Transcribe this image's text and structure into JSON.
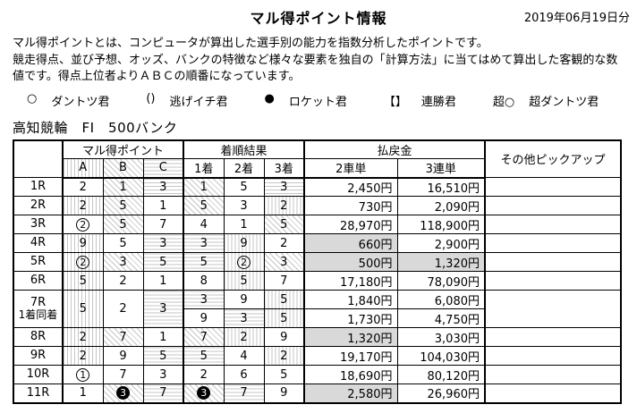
{
  "colors": {
    "hit_bg": "#d9d9d9",
    "hatch_line": "#c6c6c6",
    "border": "#000000"
  },
  "page": {
    "title": "マル得ポイント情報",
    "date": "2019年06月19日分",
    "description": [
      "マル得ポイントとは、コンピュータが算出した選手別の能力を指数分析したポイントです。",
      "競走得点、並び予想、オッズ、バンクの特徴など様々な要素を独自の「計算方法」に当てはめて算出した客観的な数値です。得点上位者よりＡＢＣの順番になっています。"
    ],
    "venue": "高知競輪　FI　500バンク"
  },
  "legend": [
    {
      "symbol": "○",
      "label": "ダントツ君"
    },
    {
      "symbol": "()",
      "label": "逃げイチ君"
    },
    {
      "symbol": "●",
      "label": "ロケット君"
    },
    {
      "symbol": "【】",
      "label": "連勝君"
    },
    {
      "symbol": "超○",
      "label": "超ダントツ君"
    }
  ],
  "table": {
    "col_headers": {
      "points_group": "マル得ポイント",
      "result_group": "着順結果",
      "payout_group": "払戻金",
      "pickup": "その他ピックアップ",
      "a": "A",
      "b": "B",
      "c": "C",
      "p1": "1着",
      "p2": "2着",
      "p3": "3着",
      "exacta": "2車単",
      "trifecta": "3連単"
    },
    "rows": [
      {
        "race": "1R",
        "note": "",
        "points": [
          {
            "v": "2",
            "h": ""
          },
          {
            "v": "1",
            "h": "d"
          },
          {
            "v": "3",
            "h": "h"
          }
        ],
        "results": [
          [
            {
              "v": "1",
              "h": "d"
            },
            {
              "v": "5",
              "h": ""
            },
            {
              "v": "3",
              "h": "h"
            }
          ]
        ],
        "payouts": [
          {
            "exacta": "2,450円",
            "exacta_hit": false,
            "trifecta": "16,510円",
            "trifecta_hit": false
          }
        ],
        "pickup": ""
      },
      {
        "race": "2R",
        "note": "",
        "points": [
          {
            "v": "2",
            "h": "v"
          },
          {
            "v": "5",
            "h": "d"
          },
          {
            "v": "1",
            "h": ""
          }
        ],
        "results": [
          [
            {
              "v": "5",
              "h": "d"
            },
            {
              "v": "3",
              "h": ""
            },
            {
              "v": "2",
              "h": "v"
            }
          ]
        ],
        "payouts": [
          {
            "exacta": "730円",
            "exacta_hit": false,
            "trifecta": "2,090円",
            "trifecta_hit": false
          }
        ],
        "pickup": ""
      },
      {
        "race": "3R",
        "note": "",
        "points": [
          {
            "v": "2",
            "h": "",
            "m": "circle"
          },
          {
            "v": "5",
            "h": "d"
          },
          {
            "v": "7",
            "h": ""
          }
        ],
        "results": [
          [
            {
              "v": "4",
              "h": ""
            },
            {
              "v": "1",
              "h": ""
            },
            {
              "v": "5",
              "h": "d"
            }
          ]
        ],
        "payouts": [
          {
            "exacta": "28,970円",
            "exacta_hit": false,
            "trifecta": "118,900円",
            "trifecta_hit": false
          }
        ],
        "pickup": ""
      },
      {
        "race": "4R",
        "note": "",
        "points": [
          {
            "v": "9",
            "h": "v"
          },
          {
            "v": "5",
            "h": ""
          },
          {
            "v": "3",
            "h": "h"
          }
        ],
        "results": [
          [
            {
              "v": "3",
              "h": "h"
            },
            {
              "v": "9",
              "h": "v"
            },
            {
              "v": "2",
              "h": ""
            }
          ]
        ],
        "payouts": [
          {
            "exacta": "660円",
            "exacta_hit": true,
            "trifecta": "2,900円",
            "trifecta_hit": false
          }
        ],
        "pickup": ""
      },
      {
        "race": "5R",
        "note": "",
        "points": [
          {
            "v": "2",
            "h": "v",
            "m": "circle"
          },
          {
            "v": "3",
            "h": "d"
          },
          {
            "v": "5",
            "h": "h"
          }
        ],
        "results": [
          [
            {
              "v": "5",
              "h": "h"
            },
            {
              "v": "2",
              "h": "v",
              "m": "circle"
            },
            {
              "v": "3",
              "h": "d"
            }
          ]
        ],
        "payouts": [
          {
            "exacta": "500円",
            "exacta_hit": true,
            "trifecta": "1,320円",
            "trifecta_hit": true
          }
        ],
        "pickup": ""
      },
      {
        "race": "6R",
        "note": "",
        "points": [
          {
            "v": "5",
            "h": "v"
          },
          {
            "v": "2",
            "h": ""
          },
          {
            "v": "1",
            "h": ""
          }
        ],
        "results": [
          [
            {
              "v": "8",
              "h": ""
            },
            {
              "v": "5",
              "h": "v"
            },
            {
              "v": "7",
              "h": ""
            }
          ]
        ],
        "payouts": [
          {
            "exacta": "17,180円",
            "exacta_hit": false,
            "trifecta": "78,090円",
            "trifecta_hit": false
          }
        ],
        "pickup": ""
      },
      {
        "race": "7R",
        "note": "1着同着",
        "points": [
          {
            "v": "5",
            "h": "v"
          },
          {
            "v": "2",
            "h": ""
          },
          {
            "v": "3",
            "h": "h"
          }
        ],
        "results": [
          [
            {
              "v": "3",
              "h": "h"
            },
            {
              "v": "9",
              "h": ""
            },
            {
              "v": "5",
              "h": "v"
            }
          ],
          [
            {
              "v": "9",
              "h": ""
            },
            {
              "v": "3",
              "h": "h"
            },
            {
              "v": "5",
              "h": "v"
            }
          ]
        ],
        "payouts": [
          {
            "exacta": "1,840円",
            "exacta_hit": false,
            "trifecta": "6,080円",
            "trifecta_hit": false
          },
          {
            "exacta": "1,730円",
            "exacta_hit": false,
            "trifecta": "4,750円",
            "trifecta_hit": false
          }
        ],
        "pickup": ""
      },
      {
        "race": "8R",
        "note": "",
        "points": [
          {
            "v": "2",
            "h": "v"
          },
          {
            "v": "7",
            "h": "d"
          },
          {
            "v": "1",
            "h": ""
          }
        ],
        "results": [
          [
            {
              "v": "7",
              "h": "d"
            },
            {
              "v": "2",
              "h": "v"
            },
            {
              "v": "9",
              "h": ""
            }
          ]
        ],
        "payouts": [
          {
            "exacta": "1,320円",
            "exacta_hit": true,
            "trifecta": "3,030円",
            "trifecta_hit": false
          }
        ],
        "pickup": ""
      },
      {
        "race": "9R",
        "note": "",
        "points": [
          {
            "v": "2",
            "h": "v"
          },
          {
            "v": "9",
            "h": ""
          },
          {
            "v": "5",
            "h": "h"
          }
        ],
        "results": [
          [
            {
              "v": "5",
              "h": "h"
            },
            {
              "v": "4",
              "h": ""
            },
            {
              "v": "2",
              "h": "v"
            }
          ]
        ],
        "payouts": [
          {
            "exacta": "19,170円",
            "exacta_hit": false,
            "trifecta": "104,030円",
            "trifecta_hit": false
          }
        ],
        "pickup": ""
      },
      {
        "race": "10R",
        "note": "",
        "points": [
          {
            "v": "1",
            "h": "",
            "m": "circle"
          },
          {
            "v": "7",
            "h": ""
          },
          {
            "v": "3",
            "h": ""
          }
        ],
        "results": [
          [
            {
              "v": "2",
              "h": ""
            },
            {
              "v": "6",
              "h": ""
            },
            {
              "v": "5",
              "h": ""
            }
          ]
        ],
        "payouts": [
          {
            "exacta": "18,690円",
            "exacta_hit": false,
            "trifecta": "80,120円",
            "trifecta_hit": false
          }
        ],
        "pickup": ""
      },
      {
        "race": "11R",
        "note": "",
        "points": [
          {
            "v": "1",
            "h": ""
          },
          {
            "v": "3",
            "h": "d",
            "m": "neg"
          },
          {
            "v": "7",
            "h": "h"
          }
        ],
        "results": [
          [
            {
              "v": "3",
              "h": "d",
              "m": "neg"
            },
            {
              "v": "7",
              "h": "h"
            },
            {
              "v": "9",
              "h": ""
            }
          ]
        ],
        "payouts": [
          {
            "exacta": "2,580円",
            "exacta_hit": true,
            "trifecta": "26,960円",
            "trifecta_hit": false
          }
        ],
        "pickup": ""
      }
    ]
  }
}
